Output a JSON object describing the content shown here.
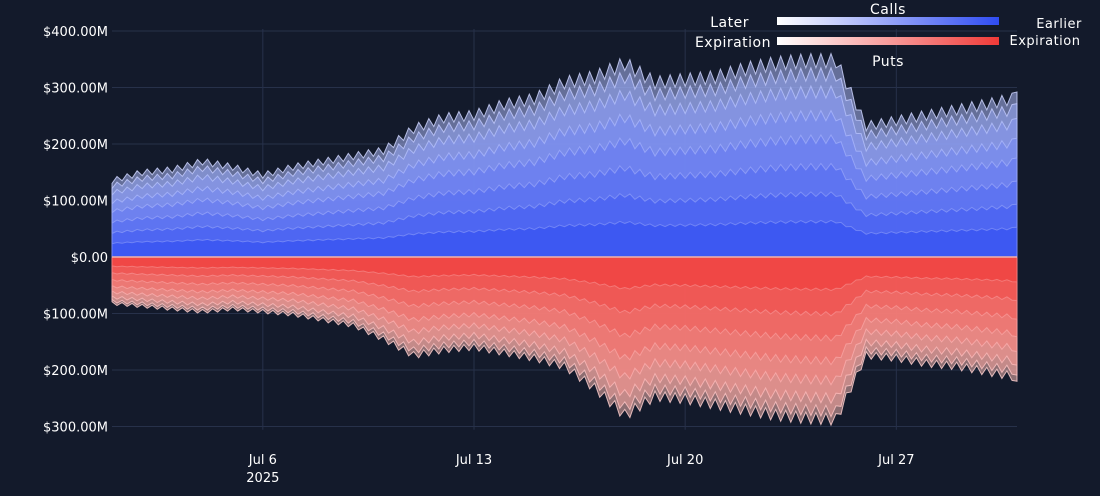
{
  "colors": {
    "background": "#131a2b",
    "grid": "#27314a",
    "calls_strong": "#2f4cf2",
    "calls_light": "#aab6f4",
    "puts_strong": "#f03a38",
    "puts_light": "#f2b4ad",
    "legend_start": "#ffffff"
  },
  "legend": {
    "calls_title": "Calls",
    "puts_title": "Puts",
    "later_line1": "Later",
    "later_line2": "Expiration",
    "earlier_line1": "Earlier",
    "earlier_line2": "Expiration"
  },
  "chart_data": {
    "type": "area",
    "x_start": "2025-07-01",
    "x_end": "2025-07-31",
    "x_ticks": [
      {
        "date": "2025-07-06",
        "label": "Jul 6",
        "sublabel": "2025"
      },
      {
        "date": "2025-07-13",
        "label": "Jul 13",
        "sublabel": ""
      },
      {
        "date": "2025-07-20",
        "label": "Jul 20",
        "sublabel": ""
      },
      {
        "date": "2025-07-27",
        "label": "Jul 27",
        "sublabel": ""
      }
    ],
    "y_ticks": [
      {
        "value": 400,
        "label": "$400.00M"
      },
      {
        "value": 300,
        "label": "$300.00M"
      },
      {
        "value": 200,
        "label": "$200.00M"
      },
      {
        "value": 100,
        "label": "$100.00M"
      },
      {
        "value": 0,
        "label": "$0.00"
      },
      {
        "value": -100,
        "label": "$100.00M"
      },
      {
        "value": -200,
        "label": "$200.00M"
      },
      {
        "value": -300,
        "label": "$300.00M"
      }
    ],
    "ylim": [
      -320,
      400
    ],
    "grid": true,
    "legend_placement": "top-right",
    "calls_total": [
      {
        "x": "2025-07-01",
        "y": 140
      },
      {
        "x": "2025-07-02",
        "y": 155
      },
      {
        "x": "2025-07-03",
        "y": 160
      },
      {
        "x": "2025-07-04",
        "y": 175
      },
      {
        "x": "2025-07-05",
        "y": 165
      },
      {
        "x": "2025-07-06",
        "y": 150
      },
      {
        "x": "2025-07-07",
        "y": 165
      },
      {
        "x": "2025-07-08",
        "y": 175
      },
      {
        "x": "2025-07-09",
        "y": 185
      },
      {
        "x": "2025-07-10",
        "y": 195
      },
      {
        "x": "2025-07-11",
        "y": 235
      },
      {
        "x": "2025-07-12",
        "y": 255
      },
      {
        "x": "2025-07-13",
        "y": 260
      },
      {
        "x": "2025-07-14",
        "y": 280
      },
      {
        "x": "2025-07-15",
        "y": 290
      },
      {
        "x": "2025-07-16",
        "y": 320
      },
      {
        "x": "2025-07-17",
        "y": 330
      },
      {
        "x": "2025-07-18",
        "y": 355
      },
      {
        "x": "2025-07-19",
        "y": 320
      },
      {
        "x": "2025-07-20",
        "y": 325
      },
      {
        "x": "2025-07-21",
        "y": 330
      },
      {
        "x": "2025-07-22",
        "y": 345
      },
      {
        "x": "2025-07-23",
        "y": 355
      },
      {
        "x": "2025-07-24",
        "y": 360
      },
      {
        "x": "2025-07-25",
        "y": 360
      },
      {
        "x": "2025-07-26",
        "y": 240
      },
      {
        "x": "2025-07-27",
        "y": 250
      },
      {
        "x": "2025-07-28",
        "y": 260
      },
      {
        "x": "2025-07-29",
        "y": 270
      },
      {
        "x": "2025-07-30",
        "y": 280
      },
      {
        "x": "2025-07-31",
        "y": 292
      }
    ],
    "puts_total": [
      {
        "x": "2025-07-01",
        "y": -85
      },
      {
        "x": "2025-07-02",
        "y": -90
      },
      {
        "x": "2025-07-03",
        "y": -95
      },
      {
        "x": "2025-07-04",
        "y": -100
      },
      {
        "x": "2025-07-05",
        "y": -95
      },
      {
        "x": "2025-07-06",
        "y": -100
      },
      {
        "x": "2025-07-07",
        "y": -105
      },
      {
        "x": "2025-07-08",
        "y": -115
      },
      {
        "x": "2025-07-09",
        "y": -125
      },
      {
        "x": "2025-07-10",
        "y": -150
      },
      {
        "x": "2025-07-11",
        "y": -180
      },
      {
        "x": "2025-07-12",
        "y": -170
      },
      {
        "x": "2025-07-13",
        "y": -165
      },
      {
        "x": "2025-07-14",
        "y": -175
      },
      {
        "x": "2025-07-15",
        "y": -185
      },
      {
        "x": "2025-07-16",
        "y": -200
      },
      {
        "x": "2025-07-17",
        "y": -240
      },
      {
        "x": "2025-07-18",
        "y": -290
      },
      {
        "x": "2025-07-19",
        "y": -255
      },
      {
        "x": "2025-07-20",
        "y": -260
      },
      {
        "x": "2025-07-21",
        "y": -270
      },
      {
        "x": "2025-07-22",
        "y": -280
      },
      {
        "x": "2025-07-23",
        "y": -290
      },
      {
        "x": "2025-07-24",
        "y": -295
      },
      {
        "x": "2025-07-25",
        "y": -298
      },
      {
        "x": "2025-07-26",
        "y": -180
      },
      {
        "x": "2025-07-27",
        "y": -185
      },
      {
        "x": "2025-07-28",
        "y": -195
      },
      {
        "x": "2025-07-29",
        "y": -200
      },
      {
        "x": "2025-07-30",
        "y": -210
      },
      {
        "x": "2025-07-31",
        "y": -220
      }
    ],
    "calls_layer_fractions": [
      0.18,
      0.32,
      0.46,
      0.6,
      0.72,
      0.84,
      0.93,
      1.0
    ],
    "puts_layer_fractions": [
      0.2,
      0.35,
      0.5,
      0.64,
      0.76,
      0.87,
      0.95,
      1.0
    ]
  }
}
